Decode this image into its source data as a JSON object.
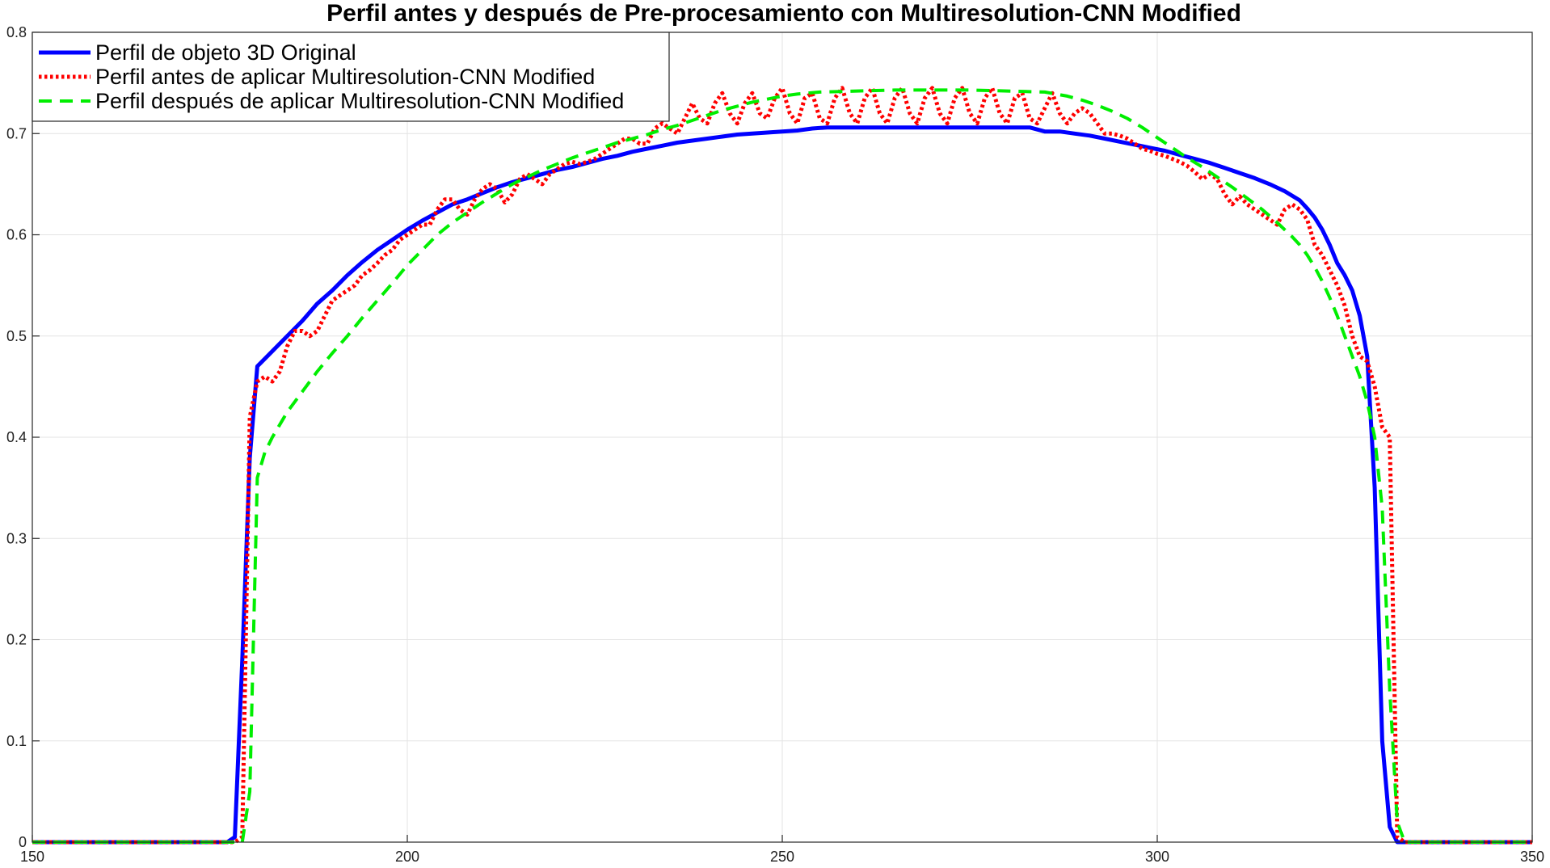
{
  "chart_data": {
    "type": "line",
    "title": "Perfil antes y después de Pre-procesamiento con Multiresolution-CNN Modified",
    "xlabel": "",
    "ylabel": "",
    "xlim": [
      150,
      350
    ],
    "ylim": [
      0,
      0.8
    ],
    "xticks": [
      150,
      200,
      250,
      300,
      350
    ],
    "yticks": [
      0,
      0.1,
      0.2,
      0.3,
      0.4,
      0.5,
      0.6,
      0.7,
      0.8
    ],
    "grid": true,
    "legend_position": "top-left",
    "series": [
      {
        "name": "Perfil de objeto 3D Original",
        "color": "#0000ff",
        "style": "solid",
        "x": [
          150,
          176,
          177,
          178,
          179,
          180,
          182,
          184,
          186,
          188,
          190,
          192,
          194,
          196,
          198,
          200,
          202,
          204,
          206,
          208,
          210,
          212,
          214,
          216,
          218,
          220,
          222,
          224,
          226,
          228,
          230,
          232,
          234,
          236,
          238,
          240,
          242,
          244,
          246,
          248,
          250,
          252,
          254,
          256,
          260,
          265,
          270,
          275,
          280,
          283,
          285,
          287,
          289,
          291,
          293,
          295,
          297,
          299,
          301,
          303,
          305,
          307,
          309,
          311,
          313,
          315,
          317,
          319,
          320,
          321,
          322,
          323,
          324,
          325,
          326,
          327,
          328,
          329,
          330,
          331,
          332,
          333,
          334,
          350
        ],
        "y": [
          0,
          0,
          0.005,
          0.18,
          0.38,
          0.47,
          0.485,
          0.5,
          0.515,
          0.532,
          0.545,
          0.56,
          0.573,
          0.585,
          0.595,
          0.605,
          0.614,
          0.622,
          0.63,
          0.635,
          0.641,
          0.647,
          0.652,
          0.656,
          0.66,
          0.664,
          0.667,
          0.671,
          0.675,
          0.678,
          0.682,
          0.685,
          0.688,
          0.691,
          0.693,
          0.695,
          0.697,
          0.699,
          0.7,
          0.701,
          0.702,
          0.703,
          0.705,
          0.706,
          0.706,
          0.706,
          0.706,
          0.706,
          0.706,
          0.706,
          0.702,
          0.702,
          0.7,
          0.698,
          0.695,
          0.692,
          0.689,
          0.686,
          0.683,
          0.679,
          0.675,
          0.671,
          0.666,
          0.661,
          0.656,
          0.65,
          0.643,
          0.634,
          0.626,
          0.617,
          0.605,
          0.59,
          0.572,
          0.56,
          0.545,
          0.52,
          0.48,
          0.35,
          0.1,
          0.015,
          0,
          0,
          0,
          0
        ]
      },
      {
        "name": "Perfil antes de aplicar Multiresolution-CNN Modified",
        "color": "#ff0000",
        "style": "dotted",
        "x": [
          150,
          177,
          178,
          179,
          180,
          181,
          182,
          183,
          184,
          185,
          186,
          187,
          188,
          189,
          190,
          191,
          192,
          193,
          194,
          195,
          196,
          197,
          198,
          199,
          200,
          201,
          202,
          203,
          204,
          205,
          206,
          207,
          208,
          209,
          210,
          211,
          212,
          213,
          214,
          215,
          216,
          217,
          218,
          219,
          220,
          221,
          222,
          223,
          224,
          225,
          226,
          227,
          228,
          229,
          230,
          231,
          232,
          233,
          234,
          235,
          236,
          237,
          238,
          239,
          240,
          241,
          242,
          243,
          244,
          245,
          246,
          247,
          248,
          249,
          250,
          251,
          252,
          253,
          254,
          255,
          256,
          257,
          258,
          259,
          260,
          261,
          262,
          263,
          264,
          265,
          266,
          267,
          268,
          269,
          270,
          271,
          272,
          273,
          274,
          275,
          276,
          277,
          278,
          279,
          280,
          281,
          282,
          283,
          284,
          285,
          286,
          287,
          288,
          289,
          290,
          291,
          292,
          293,
          294,
          295,
          296,
          297,
          298,
          299,
          300,
          301,
          302,
          303,
          304,
          305,
          306,
          307,
          308,
          309,
          310,
          311,
          312,
          313,
          314,
          315,
          316,
          317,
          318,
          319,
          320,
          321,
          322,
          323,
          324,
          325,
          326,
          327,
          328,
          329,
          330,
          331,
          332,
          333,
          350
        ],
        "y": [
          0,
          0,
          0.005,
          0.42,
          0.455,
          0.46,
          0.455,
          0.465,
          0.49,
          0.505,
          0.505,
          0.5,
          0.505,
          0.52,
          0.535,
          0.54,
          0.545,
          0.55,
          0.56,
          0.565,
          0.572,
          0.58,
          0.585,
          0.595,
          0.6,
          0.605,
          0.61,
          0.61,
          0.625,
          0.635,
          0.635,
          0.625,
          0.62,
          0.635,
          0.645,
          0.65,
          0.645,
          0.632,
          0.64,
          0.655,
          0.66,
          0.655,
          0.65,
          0.66,
          0.665,
          0.67,
          0.672,
          0.67,
          0.672,
          0.675,
          0.68,
          0.685,
          0.69,
          0.695,
          0.695,
          0.69,
          0.69,
          0.705,
          0.71,
          0.705,
          0.7,
          0.715,
          0.73,
          0.715,
          0.71,
          0.73,
          0.74,
          0.72,
          0.71,
          0.73,
          0.74,
          0.72,
          0.715,
          0.735,
          0.745,
          0.72,
          0.71,
          0.735,
          0.74,
          0.715,
          0.71,
          0.735,
          0.745,
          0.72,
          0.71,
          0.735,
          0.745,
          0.72,
          0.71,
          0.735,
          0.745,
          0.72,
          0.71,
          0.735,
          0.745,
          0.72,
          0.71,
          0.735,
          0.745,
          0.72,
          0.71,
          0.735,
          0.745,
          0.72,
          0.71,
          0.735,
          0.74,
          0.715,
          0.71,
          0.725,
          0.74,
          0.72,
          0.71,
          0.72,
          0.725,
          0.72,
          0.71,
          0.7,
          0.7,
          0.698,
          0.695,
          0.69,
          0.685,
          0.683,
          0.68,
          0.678,
          0.675,
          0.672,
          0.668,
          0.662,
          0.655,
          0.66,
          0.655,
          0.64,
          0.63,
          0.638,
          0.63,
          0.625,
          0.62,
          0.615,
          0.61,
          0.625,
          0.63,
          0.625,
          0.615,
          0.59,
          0.58,
          0.565,
          0.55,
          0.53,
          0.5,
          0.48,
          0.475,
          0.45,
          0.41,
          0.4,
          0.005,
          0,
          0
        ]
      },
      {
        "name": "Perfil después de aplicar Multiresolution-CNN Modified",
        "color": "#00ee00",
        "style": "dashed",
        "x": [
          150,
          178,
          179,
          180,
          181,
          182,
          184,
          186,
          188,
          190,
          192,
          194,
          196,
          198,
          200,
          202,
          204,
          206,
          208,
          210,
          212,
          214,
          216,
          218,
          220,
          222,
          224,
          226,
          228,
          230,
          232,
          234,
          236,
          238,
          240,
          242,
          244,
          246,
          248,
          250,
          252,
          255,
          260,
          265,
          270,
          275,
          280,
          285,
          288,
          290,
          292,
          294,
          296,
          298,
          300,
          302,
          304,
          306,
          308,
          310,
          312,
          314,
          316,
          318,
          319,
          320,
          321,
          322,
          323,
          324,
          325,
          326,
          327,
          328,
          329,
          330,
          331,
          332,
          333,
          350
        ],
        "y": [
          0,
          0,
          0.05,
          0.36,
          0.385,
          0.4,
          0.425,
          0.445,
          0.465,
          0.483,
          0.5,
          0.518,
          0.535,
          0.552,
          0.57,
          0.585,
          0.6,
          0.612,
          0.622,
          0.632,
          0.641,
          0.65,
          0.657,
          0.664,
          0.67,
          0.676,
          0.681,
          0.686,
          0.691,
          0.695,
          0.699,
          0.704,
          0.708,
          0.713,
          0.718,
          0.723,
          0.727,
          0.731,
          0.734,
          0.737,
          0.739,
          0.741,
          0.742,
          0.743,
          0.743,
          0.743,
          0.742,
          0.741,
          0.737,
          0.733,
          0.728,
          0.722,
          0.715,
          0.706,
          0.696,
          0.686,
          0.676,
          0.667,
          0.657,
          0.647,
          0.636,
          0.625,
          0.612,
          0.598,
          0.59,
          0.58,
          0.568,
          0.554,
          0.538,
          0.52,
          0.5,
          0.48,
          0.46,
          0.435,
          0.4,
          0.33,
          0.15,
          0.02,
          0,
          0
        ]
      }
    ]
  }
}
